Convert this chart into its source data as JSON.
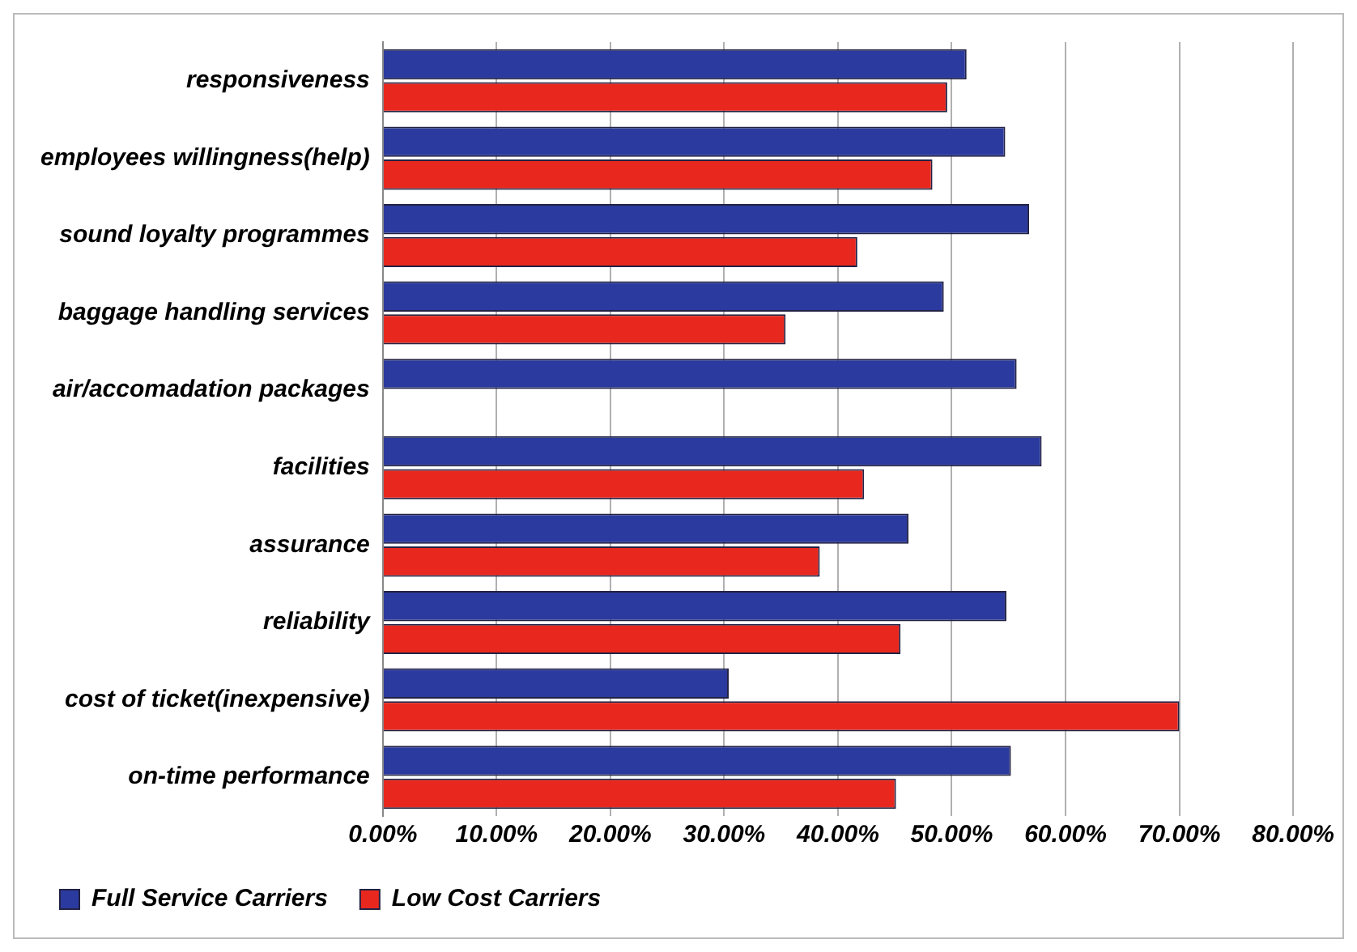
{
  "chart_data": {
    "type": "bar",
    "orientation": "horizontal",
    "categories": [
      "responsiveness",
      "employees willingness(help)",
      "sound loyalty programmes",
      "baggage handling services",
      "air/accomadation packages",
      "facilities",
      "assurance",
      "reliability",
      "cost of ticket(inexpensive)",
      "on-time performance"
    ],
    "series": [
      {
        "name": "Full Service Carriers",
        "color": "#2b3a9e",
        "values": [
          51.3,
          54.7,
          56.8,
          49.3,
          55.7,
          57.9,
          46.2,
          54.8,
          30.4,
          55.2
        ]
      },
      {
        "name": "Low Cost Carriers",
        "color": "#e8281e",
        "values": [
          49.6,
          48.3,
          41.7,
          35.4,
          null,
          42.3,
          38.4,
          45.5,
          70.0,
          45.1
        ]
      }
    ],
    "xlim": [
      0,
      80
    ],
    "xticks": [
      {
        "value": 0,
        "label": "0.00%"
      },
      {
        "value": 10,
        "label": "10.00%"
      },
      {
        "value": 20,
        "label": "20.00%"
      },
      {
        "value": 30,
        "label": "30.00%"
      },
      {
        "value": 40,
        "label": "40.00%"
      },
      {
        "value": 50,
        "label": "50.00%"
      },
      {
        "value": 60,
        "label": "60.00%"
      },
      {
        "value": 70,
        "label": "70.00%"
      },
      {
        "value": 80,
        "label": "80.00%"
      }
    ],
    "grid": "x",
    "legend": "bottom"
  }
}
